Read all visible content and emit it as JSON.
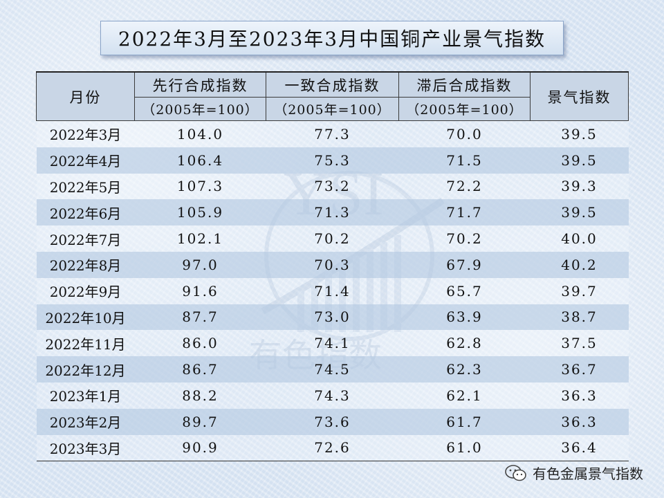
{
  "title": "2022年3月至2023年3月中国铜产业景气指数",
  "columns": {
    "month": "月份",
    "leading": "先行合成指数",
    "coincident": "一致合成指数",
    "lagging": "滞后合成指数",
    "prosperity": "景气指数",
    "base": "（2005年=100）"
  },
  "rows": [
    {
      "month": "2022年3月",
      "leading": "104.0",
      "coincident": "77.3",
      "lagging": "70.0",
      "prosperity": "39.5"
    },
    {
      "month": "2022年4月",
      "leading": "106.4",
      "coincident": "75.3",
      "lagging": "71.5",
      "prosperity": "39.5"
    },
    {
      "month": "2022年5月",
      "leading": "107.3",
      "coincident": "73.2",
      "lagging": "72.2",
      "prosperity": "39.3"
    },
    {
      "month": "2022年6月",
      "leading": "105.9",
      "coincident": "71.3",
      "lagging": "71.7",
      "prosperity": "39.5"
    },
    {
      "month": "2022年7月",
      "leading": "102.1",
      "coincident": "70.2",
      "lagging": "70.2",
      "prosperity": "40.0"
    },
    {
      "month": "2022年8月",
      "leading": "97.0",
      "coincident": "70.3",
      "lagging": "67.9",
      "prosperity": "40.2"
    },
    {
      "month": "2022年9月",
      "leading": "91.6",
      "coincident": "71.4",
      "lagging": "65.7",
      "prosperity": "39.7"
    },
    {
      "month": "2022年10月",
      "leading": "87.7",
      "coincident": "73.0",
      "lagging": "63.9",
      "prosperity": "38.7"
    },
    {
      "month": "2022年11月",
      "leading": "86.0",
      "coincident": "74.1",
      "lagging": "62.8",
      "prosperity": "37.5"
    },
    {
      "month": "2022年12月",
      "leading": "86.7",
      "coincident": "74.5",
      "lagging": "62.3",
      "prosperity": "36.7"
    },
    {
      "month": "2023年1月",
      "leading": "88.2",
      "coincident": "74.3",
      "lagging": "62.1",
      "prosperity": "36.3"
    },
    {
      "month": "2023年2月",
      "leading": "89.7",
      "coincident": "73.6",
      "lagging": "61.7",
      "prosperity": "36.3"
    },
    {
      "month": "2023年3月",
      "leading": "90.9",
      "coincident": "72.6",
      "lagging": "61.0",
      "prosperity": "36.4"
    }
  ],
  "watermark": {
    "logo_text": "YSI",
    "caption": "有色指数"
  },
  "footer": {
    "icon": "wechat-icon",
    "account": "有色金属景气指数"
  },
  "colors": {
    "header_bg": "#c9d6e6",
    "stripe": "#bed0e6",
    "background": "#dfe9f5"
  }
}
